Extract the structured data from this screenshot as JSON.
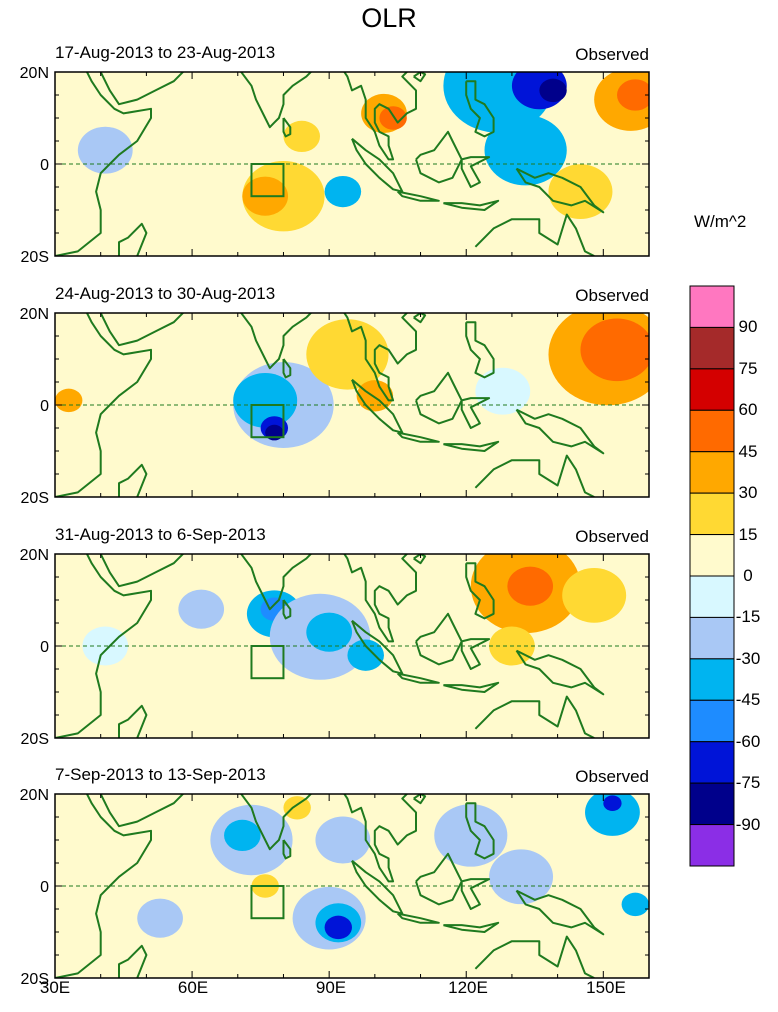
{
  "title": "OLR",
  "observed_label": "Observed",
  "panels": [
    {
      "date_range": "17-Aug-2013 to 23-Aug-2013"
    },
    {
      "date_range": "24-Aug-2013 to 30-Aug-2013"
    },
    {
      "date_range": "31-Aug-2013 to 6-Sep-2013"
    },
    {
      "date_range": "7-Sep-2013 to 13-Sep-2013"
    }
  ],
  "lat_labels": [
    "20N",
    "0",
    "20S"
  ],
  "lon_labels": [
    "30E",
    "60E",
    "90E",
    "120E",
    "150E"
  ],
  "colorbar": {
    "units": "W/m^2",
    "levels": [
      "90",
      "75",
      "60",
      "45",
      "30",
      "15",
      "0",
      "-15",
      "-30",
      "-45",
      "-60",
      "-75",
      "-90"
    ],
    "colors": [
      "#ff77c0",
      "#a52a2a",
      "#d40000",
      "#ff6a00",
      "#ffa800",
      "#ffd933",
      "#fffacd",
      "#d8f8ff",
      "#a9c8f5",
      "#00b4f0",
      "#1e8cff",
      "#0014d8",
      "#00008b",
      "#8b2ee6"
    ]
  },
  "map_extent": {
    "lon_min": 30,
    "lon_max": 160,
    "lat_min": -20,
    "lat_max": 20
  },
  "box": {
    "lon": [
      73,
      80
    ],
    "lat": [
      -7,
      0
    ]
  },
  "anomalies": [
    [
      {
        "lon": 127,
        "lat": 17,
        "r": 12,
        "level": 9
      },
      {
        "lon": 136,
        "lat": 17,
        "r": 6,
        "level": 11
      },
      {
        "lon": 139,
        "lat": 16,
        "r": 3,
        "level": 12
      },
      {
        "lon": 133,
        "lat": 3,
        "r": 9,
        "level": 9
      },
      {
        "lon": 156,
        "lat": 14,
        "r": 8,
        "level": 4
      },
      {
        "lon": 157,
        "lat": 15,
        "r": 4,
        "level": 3
      },
      {
        "lon": 102,
        "lat": 11,
        "r": 5,
        "level": 4
      },
      {
        "lon": 104,
        "lat": 10,
        "r": 3,
        "level": 3
      },
      {
        "lon": 80,
        "lat": -7,
        "r": 9,
        "level": 5
      },
      {
        "lon": 76,
        "lat": -7,
        "r": 5,
        "level": 4
      },
      {
        "lon": 93,
        "lat": -6,
        "r": 4,
        "level": 9
      },
      {
        "lon": 84,
        "lat": 6,
        "r": 4,
        "level": 5
      },
      {
        "lon": 145,
        "lat": -6,
        "r": 7,
        "level": 5
      },
      {
        "lon": 41,
        "lat": 3,
        "r": 6,
        "level": 8
      }
    ],
    [
      {
        "lon": 80,
        "lat": 0,
        "r": 11,
        "level": 8
      },
      {
        "lon": 76,
        "lat": 1,
        "r": 7,
        "level": 9
      },
      {
        "lon": 78,
        "lat": -5,
        "r": 3,
        "level": 11
      },
      {
        "lon": 78,
        "lat": -6,
        "r": 2,
        "level": 12
      },
      {
        "lon": 151,
        "lat": 11,
        "r": 13,
        "level": 4
      },
      {
        "lon": 153,
        "lat": 12,
        "r": 8,
        "level": 3
      },
      {
        "lon": 94,
        "lat": 11,
        "r": 9,
        "level": 5
      },
      {
        "lon": 100,
        "lat": 2,
        "r": 4,
        "level": 4
      },
      {
        "lon": 128,
        "lat": 3,
        "r": 6,
        "level": 7
      },
      {
        "lon": 33,
        "lat": 1,
        "r": 3,
        "level": 4
      }
    ],
    [
      {
        "lon": 133,
        "lat": 13,
        "r": 12,
        "level": 4
      },
      {
        "lon": 134,
        "lat": 13,
        "r": 5,
        "level": 3
      },
      {
        "lon": 148,
        "lat": 11,
        "r": 7,
        "level": 5
      },
      {
        "lon": 78,
        "lat": 7,
        "r": 6,
        "level": 9
      },
      {
        "lon": 78,
        "lat": 8,
        "r": 3,
        "level": 10
      },
      {
        "lon": 88,
        "lat": 2,
        "r": 11,
        "level": 8
      },
      {
        "lon": 90,
        "lat": 3,
        "r": 5,
        "level": 9
      },
      {
        "lon": 62,
        "lat": 8,
        "r": 5,
        "level": 8
      },
      {
        "lon": 98,
        "lat": -2,
        "r": 4,
        "level": 9
      },
      {
        "lon": 130,
        "lat": 0,
        "r": 5,
        "level": 5
      },
      {
        "lon": 41,
        "lat": 0,
        "r": 5,
        "level": 7
      }
    ],
    [
      {
        "lon": 73,
        "lat": 10,
        "r": 9,
        "level": 8
      },
      {
        "lon": 71,
        "lat": 11,
        "r": 4,
        "level": 9
      },
      {
        "lon": 90,
        "lat": -7,
        "r": 8,
        "level": 8
      },
      {
        "lon": 92,
        "lat": -8,
        "r": 5,
        "level": 9
      },
      {
        "lon": 92,
        "lat": -9,
        "r": 3,
        "level": 11
      },
      {
        "lon": 93,
        "lat": 10,
        "r": 6,
        "level": 8
      },
      {
        "lon": 121,
        "lat": 11,
        "r": 8,
        "level": 8
      },
      {
        "lon": 132,
        "lat": 2,
        "r": 7,
        "level": 8
      },
      {
        "lon": 152,
        "lat": 16,
        "r": 6,
        "level": 9
      },
      {
        "lon": 152,
        "lat": 18,
        "r": 2,
        "level": 11
      },
      {
        "lon": 157,
        "lat": -4,
        "r": 3,
        "level": 9
      },
      {
        "lon": 76,
        "lat": 0,
        "r": 3,
        "level": 5
      },
      {
        "lon": 83,
        "lat": 17,
        "r": 3,
        "level": 5
      },
      {
        "lon": 53,
        "lat": -7,
        "r": 5,
        "level": 8
      }
    ]
  ]
}
